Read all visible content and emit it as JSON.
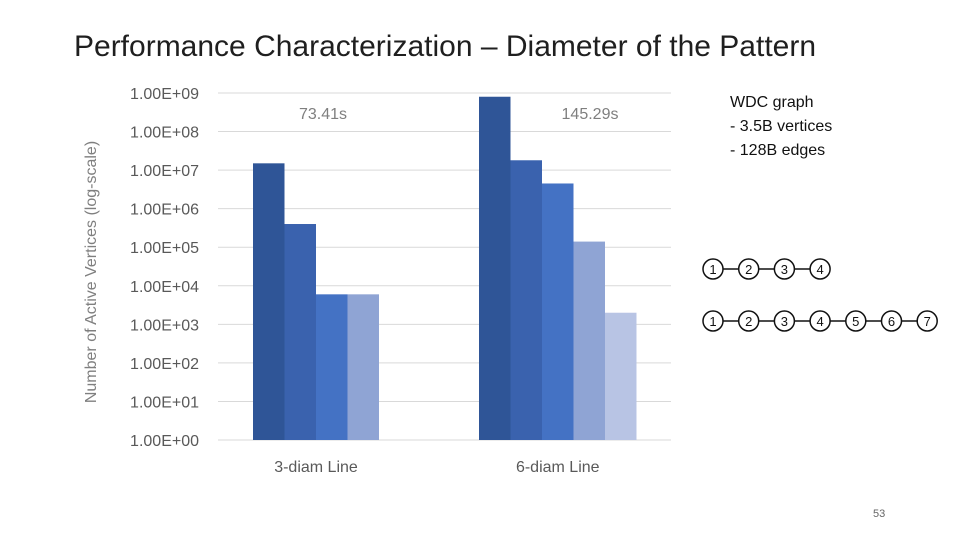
{
  "slide": {
    "title": "Performance Characterization – Diameter of the Pattern",
    "page_number": "53"
  },
  "info": {
    "lines": [
      "WDC graph",
      "- 3.5B vertices",
      "- 128B edges"
    ]
  },
  "patterns": [
    {
      "nodes": [
        "1",
        "2",
        "3",
        "4"
      ]
    },
    {
      "nodes": [
        "1",
        "2",
        "3",
        "4",
        "5",
        "6",
        "7"
      ]
    }
  ],
  "chart_data": {
    "type": "bar",
    "title": "",
    "ylabel": "Number of Active Vertices (log-scale)",
    "xlabel": "",
    "yscale": "log",
    "ylim": [
      1,
      1000000000
    ],
    "yticks": [
      "1.00E+00",
      "1.00E+01",
      "1.00E+02",
      "1.00E+03",
      "1.00E+04",
      "1.00E+05",
      "1.00E+06",
      "1.00E+07",
      "1.00E+08",
      "1.00E+09"
    ],
    "grid": true,
    "legend": "none",
    "categories": [
      "3-diam Line",
      "6-diam Line"
    ],
    "annotations": [
      "73.41s",
      "145.29s"
    ],
    "groups": [
      {
        "category": "3-diam Line",
        "values": [
          15000000,
          400000,
          6000,
          6000
        ],
        "colors": [
          "#2f5597",
          "#3a62ae",
          "#4472c4",
          "#8fa4d4"
        ]
      },
      {
        "category": "6-diam Line",
        "values": [
          800000000,
          18000000,
          4500000,
          140000,
          2000
        ],
        "colors": [
          "#2f5597",
          "#3a62ae",
          "#4472c4",
          "#8fa4d4",
          "#b8c4e4"
        ]
      }
    ]
  }
}
